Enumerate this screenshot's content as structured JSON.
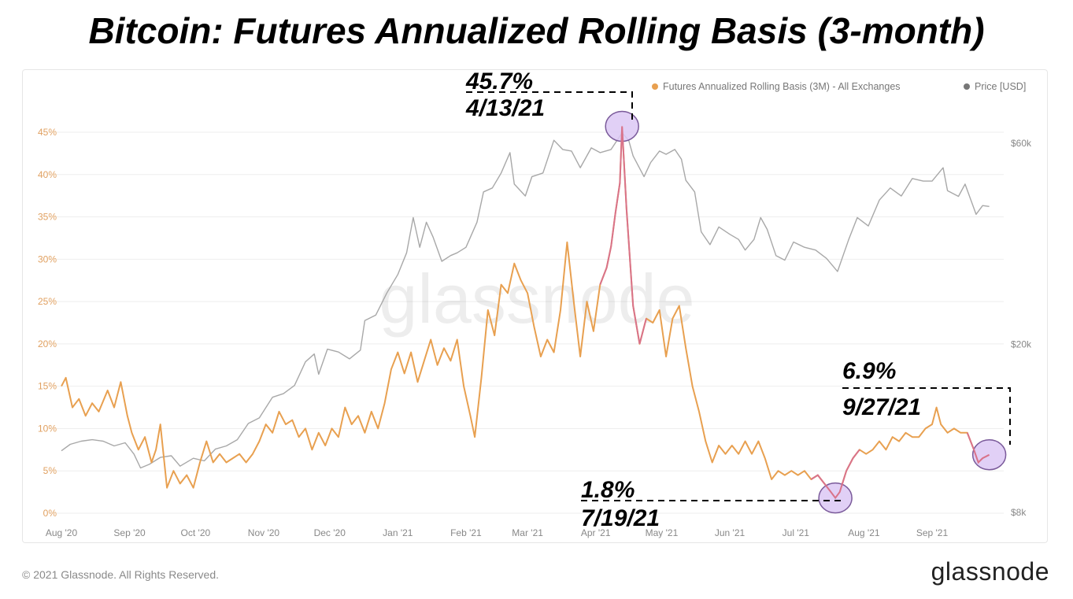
{
  "title": "Bitcoin: Futures Annualized Rolling Basis (3-month)",
  "watermark": "glassnode",
  "footer": {
    "copyright": "© 2021 Glassnode. All Rights Reserved.",
    "logo": "glassnode"
  },
  "colors": {
    "basis": "#e8a050",
    "price": "#a8a8a8",
    "highlight_fill": "#dcc8f5",
    "highlight_stroke": "#7a5a9a",
    "grid": "#eeeeee",
    "left_ticks": "#e0a060",
    "right_ticks": "#888888"
  },
  "chart_data": {
    "type": "line",
    "title": "Bitcoin: Futures Annualized Rolling Basis (3-month)",
    "legend_position": "top-right",
    "grid": true,
    "x_ticks": [
      "Aug '20",
      "Sep '20",
      "Oct '20",
      "Nov '20",
      "Dec '20",
      "Jan '21",
      "Feb '21",
      "Mar '21",
      "Apr '21",
      "May '21",
      "Jun '21",
      "Jul '21",
      "Aug '21",
      "Sep '21"
    ],
    "x_range": [
      "2020-08-01",
      "2021-09-30"
    ],
    "y_left": {
      "ticks": [
        "0%",
        "5%",
        "10%",
        "15%",
        "20%",
        "25%",
        "30%",
        "35%",
        "40%",
        "45%"
      ],
      "range": [
        0,
        45
      ],
      "unit": "%"
    },
    "y_right": {
      "ticks": [
        "$8k",
        "$20k",
        "$60k"
      ],
      "scale": "log",
      "range": [
        8000,
        60000
      ]
    },
    "series": [
      {
        "name": "Futures Annualized Rolling Basis (3M) - All Exchanges",
        "axis": "left",
        "points": [
          [
            "2020-08-01",
            15.0
          ],
          [
            "2020-08-03",
            16.0
          ],
          [
            "2020-08-06",
            12.5
          ],
          [
            "2020-08-09",
            13.5
          ],
          [
            "2020-08-12",
            11.5
          ],
          [
            "2020-08-15",
            13.0
          ],
          [
            "2020-08-18",
            12.0
          ],
          [
            "2020-08-22",
            14.5
          ],
          [
            "2020-08-25",
            12.5
          ],
          [
            "2020-08-28",
            15.5
          ],
          [
            "2020-08-31",
            11.5
          ],
          [
            "2020-09-02",
            9.5
          ],
          [
            "2020-09-05",
            7.5
          ],
          [
            "2020-09-08",
            9.0
          ],
          [
            "2020-09-11",
            6.0
          ],
          [
            "2020-09-13",
            7.5
          ],
          [
            "2020-09-15",
            10.5
          ],
          [
            "2020-09-18",
            3.0
          ],
          [
            "2020-09-21",
            5.0
          ],
          [
            "2020-09-24",
            3.5
          ],
          [
            "2020-09-27",
            4.5
          ],
          [
            "2020-09-30",
            3.0
          ],
          [
            "2020-10-03",
            6.0
          ],
          [
            "2020-10-06",
            8.5
          ],
          [
            "2020-10-09",
            6.0
          ],
          [
            "2020-10-12",
            7.0
          ],
          [
            "2020-10-15",
            6.0
          ],
          [
            "2020-10-18",
            6.5
          ],
          [
            "2020-10-21",
            7.0
          ],
          [
            "2020-10-24",
            6.0
          ],
          [
            "2020-10-27",
            7.0
          ],
          [
            "2020-10-30",
            8.5
          ],
          [
            "2020-11-02",
            10.5
          ],
          [
            "2020-11-05",
            9.5
          ],
          [
            "2020-11-08",
            12.0
          ],
          [
            "2020-11-11",
            10.5
          ],
          [
            "2020-11-14",
            11.0
          ],
          [
            "2020-11-17",
            9.0
          ],
          [
            "2020-11-20",
            10.0
          ],
          [
            "2020-11-23",
            7.5
          ],
          [
            "2020-11-26",
            9.5
          ],
          [
            "2020-11-29",
            8.0
          ],
          [
            "2020-12-02",
            10.0
          ],
          [
            "2020-12-05",
            9.0
          ],
          [
            "2020-12-08",
            12.5
          ],
          [
            "2020-12-11",
            10.5
          ],
          [
            "2020-12-14",
            11.5
          ],
          [
            "2020-12-17",
            9.5
          ],
          [
            "2020-12-20",
            12.0
          ],
          [
            "2020-12-23",
            10.0
          ],
          [
            "2020-12-26",
            13.0
          ],
          [
            "2020-12-29",
            17.0
          ],
          [
            "2021-01-01",
            19.0
          ],
          [
            "2021-01-04",
            16.5
          ],
          [
            "2021-01-07",
            19.0
          ],
          [
            "2021-01-10",
            15.5
          ],
          [
            "2021-01-13",
            18.0
          ],
          [
            "2021-01-16",
            20.5
          ],
          [
            "2021-01-19",
            17.5
          ],
          [
            "2021-01-22",
            19.5
          ],
          [
            "2021-01-25",
            18.0
          ],
          [
            "2021-01-28",
            20.5
          ],
          [
            "2021-01-31",
            15.0
          ],
          [
            "2021-02-03",
            11.5
          ],
          [
            "2021-02-05",
            9.0
          ],
          [
            "2021-02-08",
            16.0
          ],
          [
            "2021-02-11",
            24.0
          ],
          [
            "2021-02-14",
            21.0
          ],
          [
            "2021-02-17",
            27.0
          ],
          [
            "2021-02-20",
            26.0
          ],
          [
            "2021-02-23",
            29.5
          ],
          [
            "2021-02-26",
            27.5
          ],
          [
            "2021-03-01",
            26.0
          ],
          [
            "2021-03-04",
            22.0
          ],
          [
            "2021-03-07",
            18.5
          ],
          [
            "2021-03-10",
            20.5
          ],
          [
            "2021-03-13",
            19.0
          ],
          [
            "2021-03-16",
            24.0
          ],
          [
            "2021-03-19",
            32.0
          ],
          [
            "2021-03-22",
            25.0
          ],
          [
            "2021-03-25",
            18.5
          ],
          [
            "2021-03-28",
            25.0
          ],
          [
            "2021-03-31",
            21.5
          ],
          [
            "2021-04-03",
            27.0
          ],
          [
            "2021-04-06",
            29.0
          ],
          [
            "2021-04-08",
            31.5
          ],
          [
            "2021-04-10",
            35.5
          ],
          [
            "2021-04-12",
            39.0
          ],
          [
            "2021-04-13",
            45.7
          ],
          [
            "2021-04-15",
            36.0
          ],
          [
            "2021-04-18",
            24.5
          ],
          [
            "2021-04-21",
            20.0
          ],
          [
            "2021-04-24",
            23.0
          ],
          [
            "2021-04-27",
            22.5
          ],
          [
            "2021-04-30",
            24.0
          ],
          [
            "2021-05-03",
            18.5
          ],
          [
            "2021-05-06",
            23.0
          ],
          [
            "2021-05-09",
            24.5
          ],
          [
            "2021-05-12",
            19.5
          ],
          [
            "2021-05-15",
            15.0
          ],
          [
            "2021-05-18",
            12.0
          ],
          [
            "2021-05-21",
            8.5
          ],
          [
            "2021-05-24",
            6.0
          ],
          [
            "2021-05-27",
            8.0
          ],
          [
            "2021-05-30",
            7.0
          ],
          [
            "2021-06-02",
            8.0
          ],
          [
            "2021-06-05",
            7.0
          ],
          [
            "2021-06-08",
            8.5
          ],
          [
            "2021-06-11",
            7.0
          ],
          [
            "2021-06-14",
            8.5
          ],
          [
            "2021-06-17",
            6.5
          ],
          [
            "2021-06-20",
            4.0
          ],
          [
            "2021-06-23",
            5.0
          ],
          [
            "2021-06-26",
            4.5
          ],
          [
            "2021-06-29",
            5.0
          ],
          [
            "2021-07-02",
            4.5
          ],
          [
            "2021-07-05",
            5.0
          ],
          [
            "2021-07-08",
            4.0
          ],
          [
            "2021-07-11",
            4.5
          ],
          [
            "2021-07-14",
            3.5
          ],
          [
            "2021-07-17",
            2.5
          ],
          [
            "2021-07-19",
            1.8
          ],
          [
            "2021-07-21",
            2.5
          ],
          [
            "2021-07-24",
            5.0
          ],
          [
            "2021-07-27",
            6.5
          ],
          [
            "2021-07-30",
            7.5
          ],
          [
            "2021-08-02",
            7.0
          ],
          [
            "2021-08-05",
            7.5
          ],
          [
            "2021-08-08",
            8.5
          ],
          [
            "2021-08-11",
            7.5
          ],
          [
            "2021-08-14",
            9.0
          ],
          [
            "2021-08-17",
            8.5
          ],
          [
            "2021-08-20",
            9.5
          ],
          [
            "2021-08-23",
            9.0
          ],
          [
            "2021-08-26",
            9.0
          ],
          [
            "2021-08-29",
            10.0
          ],
          [
            "2021-09-01",
            10.5
          ],
          [
            "2021-09-03",
            12.5
          ],
          [
            "2021-09-05",
            10.5
          ],
          [
            "2021-09-08",
            9.5
          ],
          [
            "2021-09-11",
            10.0
          ],
          [
            "2021-09-14",
            9.5
          ],
          [
            "2021-09-17",
            9.5
          ],
          [
            "2021-09-20",
            7.5
          ],
          [
            "2021-09-22",
            6.0
          ],
          [
            "2021-09-24",
            6.5
          ],
          [
            "2021-09-27",
            6.9
          ]
        ]
      },
      {
        "name": "Price [USD]",
        "axis": "right",
        "points": [
          [
            "2020-08-01",
            11200
          ],
          [
            "2020-08-05",
            11600
          ],
          [
            "2020-08-10",
            11800
          ],
          [
            "2020-08-15",
            11900
          ],
          [
            "2020-08-20",
            11800
          ],
          [
            "2020-08-25",
            11500
          ],
          [
            "2020-08-30",
            11700
          ],
          [
            "2020-09-03",
            11000
          ],
          [
            "2020-09-06",
            10200
          ],
          [
            "2020-09-10",
            10400
          ],
          [
            "2020-09-15",
            10800
          ],
          [
            "2020-09-20",
            10900
          ],
          [
            "2020-09-24",
            10300
          ],
          [
            "2020-09-30",
            10750
          ],
          [
            "2020-10-05",
            10600
          ],
          [
            "2020-10-10",
            11300
          ],
          [
            "2020-10-15",
            11500
          ],
          [
            "2020-10-20",
            11900
          ],
          [
            "2020-10-25",
            13000
          ],
          [
            "2020-10-30",
            13400
          ],
          [
            "2020-11-05",
            15000
          ],
          [
            "2020-11-10",
            15300
          ],
          [
            "2020-11-15",
            16000
          ],
          [
            "2020-11-20",
            18200
          ],
          [
            "2020-11-24",
            19000
          ],
          [
            "2020-11-26",
            17000
          ],
          [
            "2020-11-30",
            19500
          ],
          [
            "2020-12-05",
            19200
          ],
          [
            "2020-12-10",
            18500
          ],
          [
            "2020-12-15",
            19400
          ],
          [
            "2020-12-17",
            22800
          ],
          [
            "2020-12-22",
            23500
          ],
          [
            "2020-12-27",
            26500
          ],
          [
            "2021-01-01",
            29300
          ],
          [
            "2021-01-05",
            33000
          ],
          [
            "2021-01-08",
            40000
          ],
          [
            "2021-01-11",
            34000
          ],
          [
            "2021-01-14",
            39000
          ],
          [
            "2021-01-17",
            36000
          ],
          [
            "2021-01-21",
            31500
          ],
          [
            "2021-01-25",
            32500
          ],
          [
            "2021-01-28",
            33000
          ],
          [
            "2021-02-01",
            34000
          ],
          [
            "2021-02-06",
            39000
          ],
          [
            "2021-02-09",
            46000
          ],
          [
            "2021-02-13",
            47000
          ],
          [
            "2021-02-17",
            51000
          ],
          [
            "2021-02-21",
            57000
          ],
          [
            "2021-02-23",
            48000
          ],
          [
            "2021-02-28",
            45000
          ],
          [
            "2021-03-03",
            50000
          ],
          [
            "2021-03-08",
            51000
          ],
          [
            "2021-03-13",
            61000
          ],
          [
            "2021-03-17",
            58000
          ],
          [
            "2021-03-21",
            57500
          ],
          [
            "2021-03-25",
            52500
          ],
          [
            "2021-03-30",
            58500
          ],
          [
            "2021-04-03",
            57000
          ],
          [
            "2021-04-08",
            58000
          ],
          [
            "2021-04-13",
            63500
          ],
          [
            "2021-04-16",
            61000
          ],
          [
            "2021-04-18",
            56000
          ],
          [
            "2021-04-23",
            50000
          ],
          [
            "2021-04-26",
            54000
          ],
          [
            "2021-04-30",
            57500
          ],
          [
            "2021-05-03",
            56500
          ],
          [
            "2021-05-07",
            58000
          ],
          [
            "2021-05-10",
            55000
          ],
          [
            "2021-05-12",
            49000
          ],
          [
            "2021-05-16",
            46000
          ],
          [
            "2021-05-19",
            37000
          ],
          [
            "2021-05-23",
            34500
          ],
          [
            "2021-05-27",
            38000
          ],
          [
            "2021-06-01",
            36500
          ],
          [
            "2021-06-05",
            35500
          ],
          [
            "2021-06-08",
            33500
          ],
          [
            "2021-06-12",
            35500
          ],
          [
            "2021-06-15",
            40000
          ],
          [
            "2021-06-18",
            37500
          ],
          [
            "2021-06-22",
            32500
          ],
          [
            "2021-06-26",
            31700
          ],
          [
            "2021-06-30",
            35000
          ],
          [
            "2021-07-05",
            34000
          ],
          [
            "2021-07-10",
            33500
          ],
          [
            "2021-07-15",
            32000
          ],
          [
            "2021-07-20",
            29800
          ],
          [
            "2021-07-25",
            35400
          ],
          [
            "2021-07-29",
            40000
          ],
          [
            "2021-08-03",
            38200
          ],
          [
            "2021-08-08",
            44000
          ],
          [
            "2021-08-13",
            47000
          ],
          [
            "2021-08-18",
            45000
          ],
          [
            "2021-08-23",
            49500
          ],
          [
            "2021-08-28",
            48800
          ],
          [
            "2021-09-01",
            48800
          ],
          [
            "2021-09-06",
            52500
          ],
          [
            "2021-09-08",
            46300
          ],
          [
            "2021-09-13",
            44900
          ],
          [
            "2021-09-16",
            48000
          ],
          [
            "2021-09-21",
            40700
          ],
          [
            "2021-09-24",
            42700
          ],
          [
            "2021-09-27",
            42500
          ]
        ]
      }
    ],
    "annotations": [
      {
        "value": "45.7%",
        "date": "4/13/21",
        "x": "2021-04-13",
        "y": 45.7
      },
      {
        "value": "1.8%",
        "date": "7/19/21",
        "x": "2021-07-19",
        "y": 1.8
      },
      {
        "value": "6.9%",
        "date": "9/27/21",
        "x": "2021-09-27",
        "y": 6.9
      }
    ]
  }
}
